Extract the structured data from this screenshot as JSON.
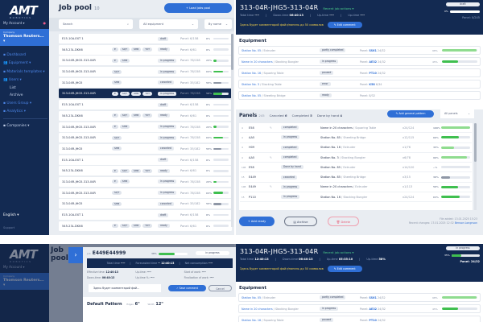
{
  "brand": {
    "logo": "AMT",
    "sub": "ROBOTICS"
  },
  "sidebar": {
    "account": "My Account ▾",
    "company_label": "Company",
    "company": "Thomson Reuters... ▾",
    "items": [
      {
        "label": "▪ Dashboard"
      },
      {
        "label": "👥 Equipment ▾"
      },
      {
        "label": "▪ Materials templates ▾"
      },
      {
        "label": "👥 Users ▾"
      }
    ],
    "subitems": [
      "List",
      "Archive"
    ],
    "items2": [
      {
        "label": "▪ Users Group ▾"
      },
      {
        "label": "▪ Analytics ▾"
      }
    ],
    "companies": "▪ Companies ▾",
    "language": "English ▾",
    "support": "Support"
  },
  "pool": {
    "title": "Job pool",
    "count": "10",
    "load_button": "+ Load jobs pool",
    "search_placeholder": "Search",
    "equipment_filter": "All equipment",
    "sort": "By name",
    "rows": [
      {
        "id": "E15-10A-EXT 1",
        "tags": [],
        "status": "draft",
        "panel": "Panel: 6/158",
        "pct": 0
      },
      {
        "id": "545-23L-DKK6",
        "tags": [
          "E",
          "SQT",
          "SHB",
          "TXT"
        ],
        "status": "ready",
        "panel": "Panel: 6/61",
        "pct": 0
      },
      {
        "id": "313-04R-JHG5-313-04R",
        "tags": [
          "E",
          "SHB"
        ],
        "status": "in progress",
        "panel": "Panel: 78/158",
        "pct": 23
      },
      {
        "id": "313-04R-JHG5-313-04R",
        "tags": [
          "SQT"
        ],
        "status": "in progress",
        "panel": "Panel: 78/158",
        "pct": 64
      },
      {
        "id": "313-04R-JHG5",
        "tags": [
          "SHB"
        ],
        "status": "canceled",
        "panel": "Panel: 35/182",
        "pct": 55
      },
      {
        "id": "313-04R-JHG5-313-04R",
        "tags": [
          "E",
          "SQT",
          "SHB",
          "TXT"
        ],
        "status": "in progress",
        "panel": "Panel: 78/158",
        "pct": 58,
        "selected": true
      },
      {
        "id": "E15-10A-EXT 1",
        "tags": [],
        "status": "draft",
        "panel": "Panel: 6/158",
        "pct": 0
      },
      {
        "id": "545-23L-DKK6",
        "tags": [
          "E",
          "SQT",
          "SHB",
          "TXT"
        ],
        "status": "ready",
        "panel": "Panel: 6/61",
        "pct": 0
      },
      {
        "id": "313-04R-JHG5-313-04R",
        "tags": [
          "E",
          "SHB"
        ],
        "status": "in progress",
        "panel": "Panel: 78/158",
        "pct": 23
      },
      {
        "id": "313-04R-JHG5-313-04R",
        "tags": [
          "SQT"
        ],
        "status": "in progress",
        "panel": "Panel: 78/158",
        "pct": 64
      },
      {
        "id": "313-04R-JHG5",
        "tags": [
          "SHB"
        ],
        "status": "canceled",
        "panel": "Panel: 35/182",
        "pct": 55
      },
      {
        "id": "E15-10A-EXT 1",
        "tags": [],
        "status": "draft",
        "panel": "Panel: 6/158",
        "pct": 0
      },
      {
        "id": "545-23L-DKK6",
        "tags": [
          "E",
          "SQT",
          "SHB",
          "TXT"
        ],
        "status": "ready",
        "panel": "Panel: 6/61",
        "pct": 0
      },
      {
        "id": "313-04R-JHG5-313-04R",
        "tags": [
          "E",
          "SHB"
        ],
        "status": "in progress",
        "panel": "Panel: 78/158",
        "pct": 23
      },
      {
        "id": "313-04R-JHG5-313-04R",
        "tags": [
          "SQT"
        ],
        "status": "in progress",
        "panel": "Panel: 78/158",
        "pct": 64
      },
      {
        "id": "313-04R-JHG5",
        "tags": [
          "SHB"
        ],
        "status": "canceled",
        "panel": "Panel: 35/182",
        "pct": 55
      },
      {
        "id": "E15-10A-EXT 1",
        "tags": [],
        "status": "draft",
        "panel": "Panel: 6/158",
        "pct": 0
      },
      {
        "id": "545-23L-DKK6",
        "tags": [
          "E",
          "SQT",
          "SHB",
          "TXT"
        ],
        "status": "ready",
        "panel": "Panel: 6/61",
        "pct": 0
      }
    ]
  },
  "job": {
    "title": "313-04R-JHG5-313-04R",
    "recent": "Recent job actions ▾",
    "times": [
      {
        "label": "Total time",
        "value": "----"
      },
      {
        "label": "Down-time",
        "value": "06:40:13"
      },
      {
        "label": "Up-time",
        "value": "----"
      },
      {
        "label": "Up-time",
        "value": "----"
      }
    ],
    "comment": "Здесь будет комментарий файл/панель до 50 символов",
    "edit_comment": "✎ Edit comment",
    "status": "draft",
    "pct": 0,
    "pct_label": "0%",
    "panel": "Panel: 0/245"
  },
  "equipment": {
    "title": "Equipment",
    "rows": [
      {
        "name": "Station No. 05",
        "type": "Extruder",
        "status": "partly completed",
        "panel_label": "Panel:",
        "panel": "SS61",
        "count": "24/32",
        "pct": 98,
        "pct_label": "98%"
      },
      {
        "name": "Name in 20 characters",
        "type": "Stacking Bungler",
        "status": "in progress",
        "panel_label": "Panel:",
        "panel": "AE32",
        "count": "24/32",
        "pct": 45,
        "pct_label": "45%"
      },
      {
        "name": "Station No. 16",
        "type": "Squaring Table",
        "status": "paused",
        "panel_label": "Panel:",
        "panel": "PT10",
        "count": "24/32"
      },
      {
        "name": "Station No. 3",
        "type": "Stacking Table",
        "status": "error",
        "panel_label": "Panel:",
        "panel": "K58",
        "count": "6/34"
      },
      {
        "name": "Station No. 05",
        "type": "Sheeting Bridge",
        "status": "ready",
        "panel_label": "Panel:",
        "panel": "",
        "count": "8/32"
      }
    ]
  },
  "panels": {
    "title": "Panels",
    "count": "245",
    "tabs": [
      {
        "label": "Canceled",
        "value": "6"
      },
      {
        "label": "Completed",
        "value": "5"
      },
      {
        "label": "Done by hand",
        "value": "4"
      }
    ],
    "add_pattern": "✎ Add general pattern",
    "filter": "All panels",
    "rows": [
      {
        "n": "4",
        "code": "E58",
        "edit": true,
        "status": "completed",
        "name": "Name in 20 characters",
        "type": "Squaring Table",
        "x": "x24/124",
        "pct": 100,
        "pct_label": "100%"
      },
      {
        "n": "4",
        "code": "AA5",
        "edit": false,
        "status": "in progress",
        "name": "Station No. 85",
        "type": "Sheeting Bridge",
        "x": "x12/115",
        "pct": 60,
        "pct_label": "60%"
      },
      {
        "n": "4",
        "code": "H09",
        "edit": false,
        "status": "completed",
        "name": "Station No. 16",
        "type": "Extruder",
        "x": "x1/76",
        "pct": 45,
        "pct_label": "45%"
      },
      {
        "n": "4",
        "code": "AA5",
        "edit": true,
        "status": "completed",
        "name": "Station No. 3",
        "type": "Stacking Bungler",
        "x": "x6/78",
        "pct": 90,
        "pct_label": "90%"
      },
      {
        "n": "108",
        "code": "E58",
        "edit": false,
        "status": "Done by hand",
        "name": "Station No. 85",
        "type": "Extruder",
        "x": "x14/120",
        "pct": 0,
        "pct_label": "--%"
      },
      {
        "n": "15",
        "code": "E449",
        "edit": false,
        "status": "canceled",
        "name": "Station No. 85",
        "type": "Sheeting Bridge",
        "x": "x3/15",
        "pct": 30,
        "pct_label": "30%"
      },
      {
        "n": "108",
        "code": "E449",
        "edit": true,
        "status": "in progress",
        "name": "Name in 20 characters",
        "type": "Extruder",
        "x": "x1/113",
        "pct": 58,
        "pct_label": "58%"
      },
      {
        "n": "15",
        "code": "P110",
        "edit": false,
        "status": "in progress",
        "name": "Station No. 16",
        "type": "Stacking Bungler",
        "x": "x24/124",
        "pct": 64,
        "pct_label": "64%"
      }
    ],
    "add_ready": "+ Add ready",
    "archive": "▤ Archive",
    "delete": "🗑 Delete",
    "file_added": "File added: 13.01.2025 15:23",
    "recent_changes": "Recent changes: 17.01.2025 12:32",
    "recent_user": "Benson Longnson"
  },
  "modal": {
    "job_label": "Job",
    "job_id": "E449E44999",
    "pct": 38,
    "pct_label": "38%",
    "status": "in progress",
    "bar": [
      {
        "label": "Total time",
        "value": "----"
      },
      {
        "label": "Forecasted time",
        "value": "~ 12:40:13"
      },
      {
        "label": "Net consumption",
        "value": "----"
      }
    ],
    "info": [
      {
        "label": "Effective time:",
        "value": "12:40:13"
      },
      {
        "label": "Up-time:",
        "value": "----"
      },
      {
        "label": "Start of work:",
        "value": "----"
      },
      {
        "label": "Down-time:",
        "value": "06:40:13"
      },
      {
        "label": "Up-time %:",
        "value": "----"
      },
      {
        "label": "Finalization of work:",
        "value": "----"
      }
    ],
    "comment_value": "Здесь будет комментарий фай...",
    "save": "✓ Save comment",
    "cancel": "Cancel",
    "pattern": "Default Pattern",
    "edges_label": "Edges",
    "edges": "6\"",
    "width_label": "Width",
    "width": "12\""
  },
  "job2": {
    "title": "313-04R-JHG5-313-04R",
    "recent": "Recent job actions ▾",
    "times": [
      {
        "label": "Total time",
        "value": "12:40:13"
      },
      {
        "label": "Down-time",
        "value": "06:40:13"
      },
      {
        "label": "Up-time",
        "value": "05:35:10"
      },
      {
        "label": "Up-time",
        "value": "58%"
      }
    ],
    "comment": "Здесь будет комментарий файл/панель до 50 символов",
    "edit_comment": "✎ Edit comment",
    "status": "in progress",
    "pct": 35,
    "pct_label": "35%",
    "panel": "Panel: 24/32"
  },
  "colors": {
    "navy": "#132a52",
    "accent": "#2f6fd6",
    "green": "#3fbf4f",
    "comment": "#f2d04b"
  }
}
